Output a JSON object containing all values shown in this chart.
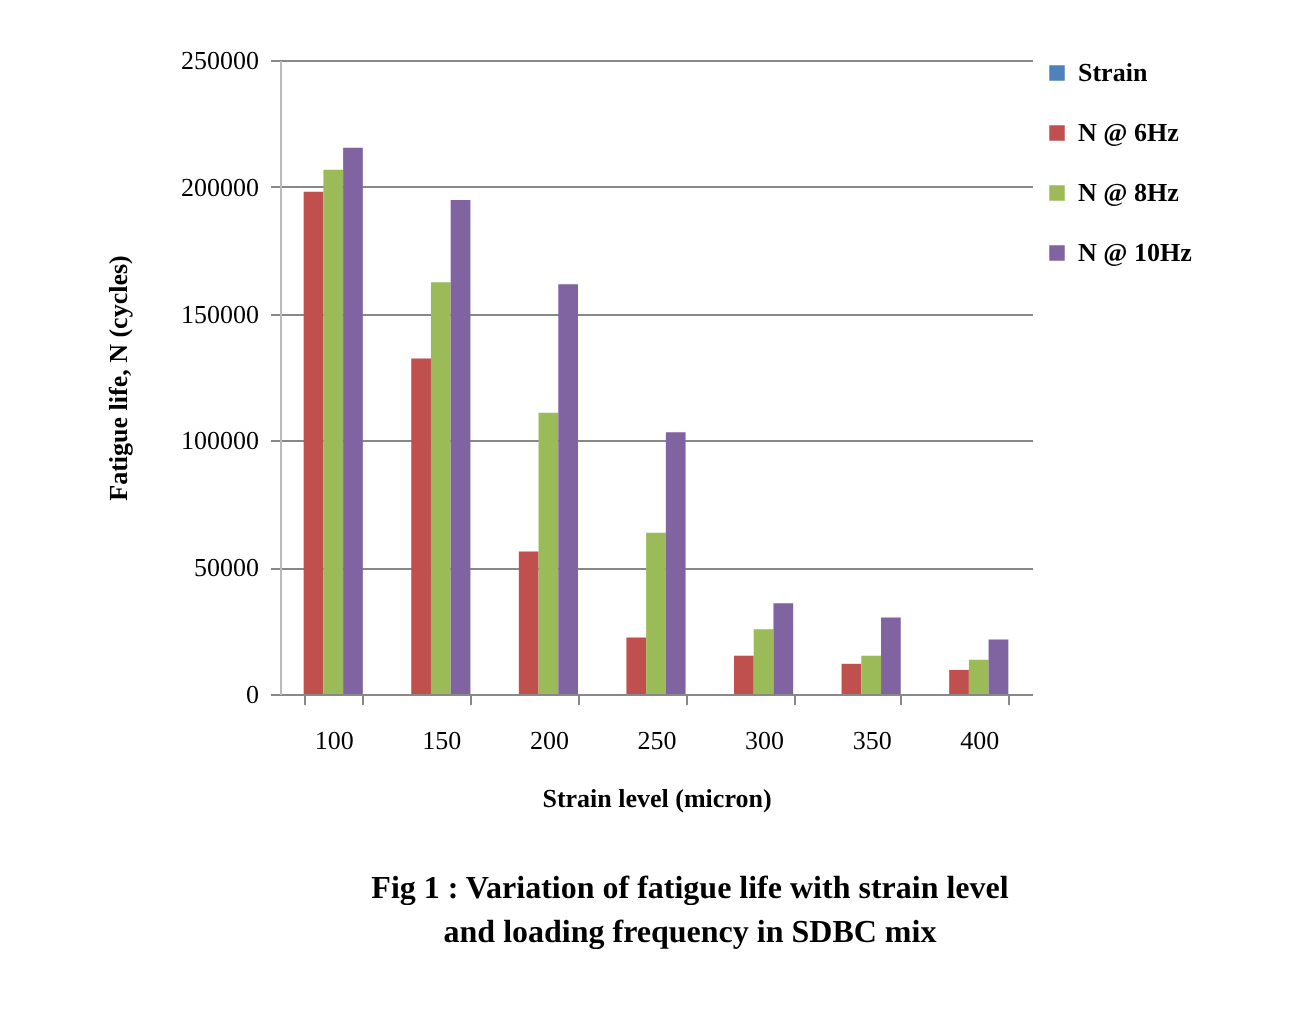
{
  "chart_data": {
    "type": "bar",
    "xlabel": "Strain level (micron)",
    "ylabel": "Fatigue life, N (cycles)",
    "annotations": [
      "Fig 1 : Variation of fatigue life with strain level and loading frequency in SDBC mix"
    ],
    "categories": [
      "100",
      "150",
      "200",
      "250",
      "300",
      "350",
      "400"
    ],
    "series": [
      {
        "name": "Strain",
        "color": "#4f81bd",
        "values": [
          null,
          null,
          null,
          null,
          null,
          null,
          null
        ]
      },
      {
        "name": "N @ 6Hz",
        "color": "#c0504d",
        "values": [
          198000,
          132300,
          56200,
          22300,
          15100,
          11900,
          9500
        ]
      },
      {
        "name": "N @ 8Hz",
        "color": "#9bbb59",
        "values": [
          206700,
          162400,
          110900,
          63600,
          25500,
          15100,
          13500
        ]
      },
      {
        "name": "N @ 10Hz",
        "color": "#8064a2",
        "values": [
          215400,
          194800,
          161600,
          103200,
          35800,
          30200,
          21500
        ]
      }
    ],
    "ylim": [
      0,
      250000
    ],
    "yticks": [
      0,
      50000,
      100000,
      150000,
      200000,
      250000
    ],
    "grid": "y",
    "legend": "right"
  }
}
